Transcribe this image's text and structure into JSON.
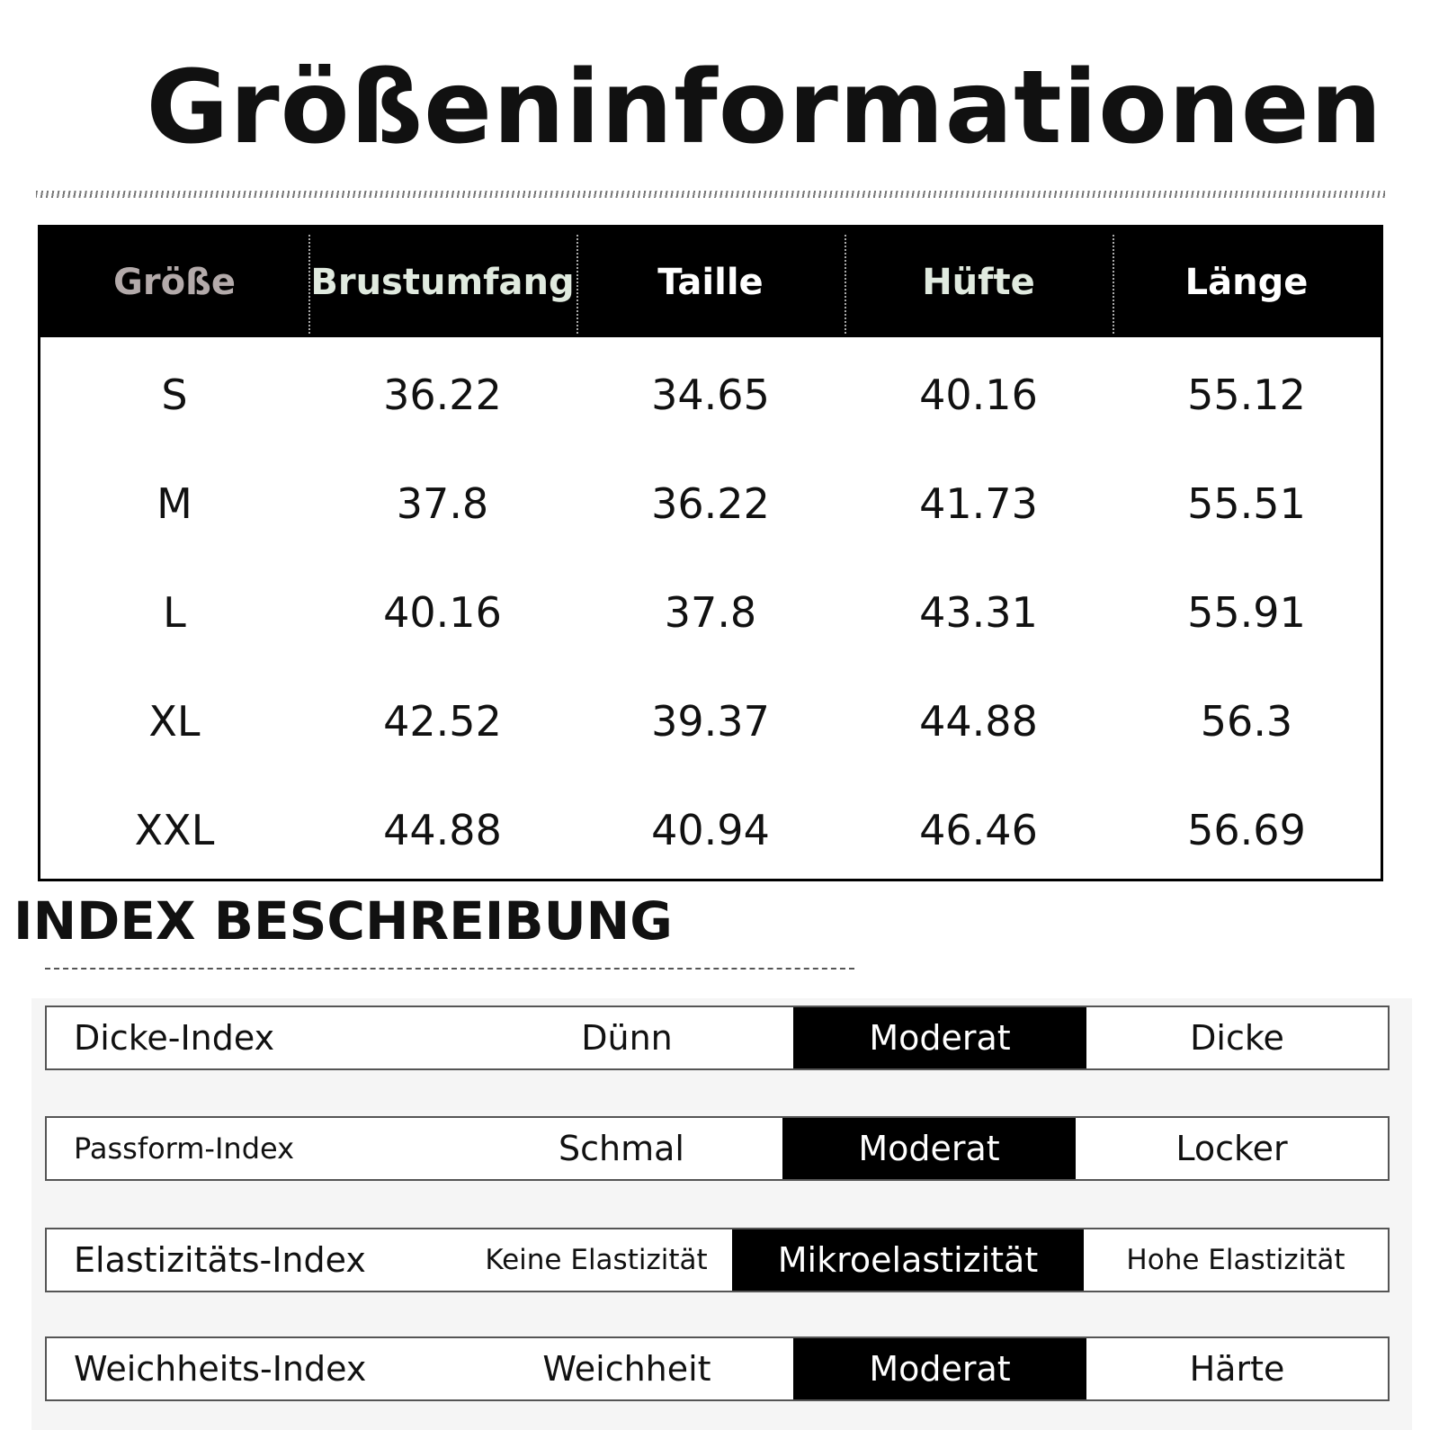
{
  "header": {
    "title": "Größeninformationen"
  },
  "size_table": {
    "columns": [
      "Größe",
      "Brustumfang",
      "Taille",
      "Hüfte",
      "Länge"
    ],
    "rows": [
      [
        "S",
        "36.22",
        "34.65",
        "40.16",
        "55.12"
      ],
      [
        "M",
        "37.8",
        "36.22",
        "41.73",
        "55.51"
      ],
      [
        "L",
        "40.16",
        "37.8",
        "43.31",
        "55.91"
      ],
      [
        "XL",
        "42.52",
        "39.37",
        "44.88",
        "56.3"
      ],
      [
        "XXL",
        "44.88",
        "40.94",
        "46.46",
        "56.69"
      ]
    ]
  },
  "index": {
    "title": "INDEX BESCHREIBUNG",
    "rows": [
      {
        "label": "Dicke-Index",
        "options": [
          "Dünn",
          "Moderat",
          "Dicke"
        ],
        "selected": 1
      },
      {
        "label": "Passform-Index",
        "options": [
          "Schmal",
          "Moderat",
          "Locker"
        ],
        "selected": 1
      },
      {
        "label": "Elastizitäts-Index",
        "options": [
          "Keine Elastizität",
          "Mikroelastizität",
          "Hohe Elastizität"
        ],
        "selected": 1
      },
      {
        "label": "Weichheits-Index",
        "options": [
          "Weichheit",
          "Moderat",
          "Härte"
        ],
        "selected": 1
      }
    ]
  }
}
